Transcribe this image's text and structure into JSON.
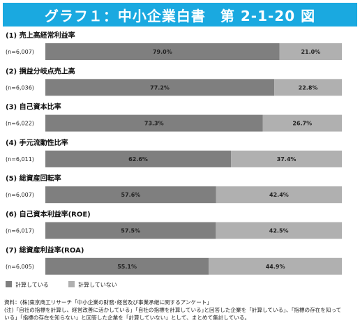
{
  "title": "グラフ１：中小企業白書　第 2-1-20 図",
  "chart_data": {
    "type": "bar",
    "orientation": "horizontal-stacked-100",
    "series": [
      {
        "name": "計算している",
        "color": "#7f7f7f"
      },
      {
        "name": "計算していない",
        "color": "#b0b0b0"
      }
    ],
    "rows": [
      {
        "label": "(1) 売上高経常利益率",
        "n": "(n=6,007)",
        "values": [
          79.0,
          21.0
        ],
        "value_labels": [
          "79.0%",
          "21.0%"
        ]
      },
      {
        "label": "(2) 損益分岐点売上高",
        "n": "(n=6,036)",
        "values": [
          77.2,
          22.8
        ],
        "value_labels": [
          "77.2%",
          "22.8%"
        ]
      },
      {
        "label": "(3) 自己資本比率",
        "n": "(n=6,022)",
        "values": [
          73.3,
          26.7
        ],
        "value_labels": [
          "73.3%",
          "26.7%"
        ]
      },
      {
        "label": "(4) 手元流動性比率",
        "n": "(n=6,011)",
        "values": [
          62.6,
          37.4
        ],
        "value_labels": [
          "62.6%",
          "37.4%"
        ]
      },
      {
        "label": "(5) 総資産回転率",
        "n": "(n=6,007)",
        "values": [
          57.6,
          42.4
        ],
        "value_labels": [
          "57.6%",
          "42.4%"
        ]
      },
      {
        "label": "(6) 自己資本利益率(ROE)",
        "n": "(n=6,017)",
        "values": [
          57.5,
          42.5
        ],
        "value_labels": [
          "57.5%",
          "42.5%"
        ]
      },
      {
        "label": "(7) 総資産利益率(ROA)",
        "n": "(n=6,005)",
        "values": [
          55.1,
          44.9
        ],
        "value_labels": [
          "55.1%",
          "44.9%"
        ]
      }
    ],
    "legend_position": "bottom-left",
    "xlim": [
      0,
      100
    ],
    "grid": false
  },
  "footer": {
    "source": "資料：(株)東京商工リサーチ「中小企業の財務･経営及び事業承継に関するアンケート」",
    "note_line1": "(注)「自社の指標を計算し、経営改善に活かしている」｢自社の指標を計算している｣と回答した企業を「計算している」、「指標の存在を知って",
    "note_line2": "いる」「指標の存在を知らない」と回答した企業を「計算していない」として、まとめて集計している。"
  }
}
